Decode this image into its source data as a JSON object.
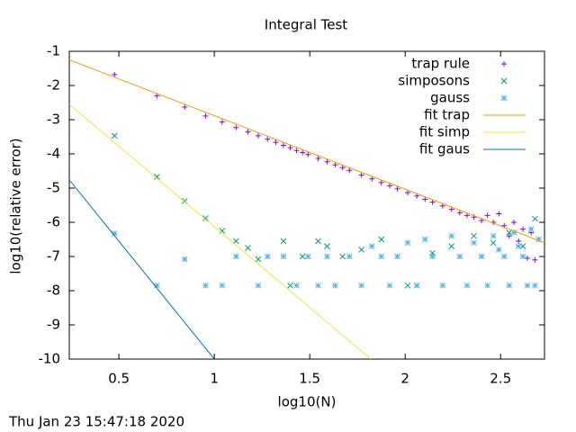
{
  "chart_data": {
    "type": "scatter",
    "title": "Integral Test",
    "x_label": "log10(N)",
    "y_label": "log10(relative error)",
    "timestamp": "Thu Jan 23 15:47:18 2020",
    "xlim": [
      0.24,
      2.73
    ],
    "ylim": [
      -10,
      -1
    ],
    "xticks": [
      0.5,
      1,
      1.5,
      2,
      2.5
    ],
    "yticks": [
      -1,
      -2,
      -3,
      -4,
      -5,
      -6,
      -7,
      -8,
      -9,
      -10
    ],
    "legend": "top-right",
    "series": [
      {
        "name": "trap rule",
        "color": "#9400d3",
        "style": "points",
        "marker": "plus",
        "x": [
          0.477,
          0.699,
          0.845,
          0.954,
          1.041,
          1.114,
          1.176,
          1.23,
          1.279,
          1.322,
          1.362,
          1.398,
          1.431,
          1.462,
          1.491,
          1.544,
          1.591,
          1.633,
          1.672,
          1.708,
          1.771,
          1.826,
          1.875,
          1.919,
          1.959,
          2.013,
          2.061,
          2.104,
          2.143,
          2.196,
          2.243,
          2.286,
          2.324,
          2.36,
          2.4,
          2.431,
          2.462,
          2.491,
          2.519,
          2.545,
          2.57,
          2.594,
          2.617,
          2.64,
          2.66,
          2.68,
          2.7
        ],
        "y": [
          -1.68,
          -2.3,
          -2.63,
          -2.89,
          -3.07,
          -3.23,
          -3.36,
          -3.47,
          -3.57,
          -3.66,
          -3.75,
          -3.82,
          -3.9,
          -3.96,
          -4.02,
          -4.13,
          -4.23,
          -4.32,
          -4.4,
          -4.48,
          -4.62,
          -4.73,
          -4.84,
          -4.93,
          -5.02,
          -5.13,
          -5.23,
          -5.33,
          -5.41,
          -5.52,
          -5.62,
          -5.72,
          -5.8,
          -5.85,
          -5.95,
          -5.8,
          -6.0,
          -5.75,
          -6.1,
          -6.4,
          -6.0,
          -6.55,
          -6.2,
          -7.05,
          -6.3,
          -7.1,
          -6.5
        ]
      },
      {
        "name": "simposons",
        "color": "#009e73",
        "style": "points",
        "marker": "cross",
        "x": [
          0.477,
          0.699,
          0.845,
          0.954,
          1.041,
          1.114,
          1.176,
          1.23,
          1.362,
          1.398,
          1.462,
          1.544,
          1.591,
          1.672,
          1.771,
          1.875,
          2.013,
          2.061,
          2.143,
          2.243,
          2.36,
          2.462,
          2.545,
          2.617,
          2.68
        ],
        "y": [
          -3.47,
          -4.67,
          -5.38,
          -5.88,
          -6.25,
          -6.55,
          -6.75,
          -7.08,
          -6.55,
          -7.85,
          -7.0,
          -6.55,
          -6.7,
          -7.0,
          -6.8,
          -6.5,
          -7.85,
          -7.85,
          -6.9,
          -6.7,
          -6.4,
          -6.6,
          -6.3,
          -6.7,
          -5.9
        ]
      },
      {
        "name": "gauss",
        "color": "#56b4e9",
        "style": "points",
        "marker": "star",
        "x": [
          0.477,
          0.699,
          0.845,
          0.954,
          1.041,
          1.114,
          1.23,
          1.279,
          1.362,
          1.431,
          1.491,
          1.544,
          1.591,
          1.633,
          1.708,
          1.771,
          1.826,
          1.875,
          1.919,
          1.959,
          2.013,
          2.061,
          2.104,
          2.143,
          2.196,
          2.243,
          2.286,
          2.324,
          2.36,
          2.4,
          2.431,
          2.462,
          2.491,
          2.519,
          2.545,
          2.57,
          2.594,
          2.617,
          2.64,
          2.66,
          2.68,
          2.7
        ],
        "y": [
          -6.33,
          -7.85,
          -7.08,
          -7.85,
          -7.85,
          -7.0,
          -7.85,
          -7.0,
          -7.0,
          -7.85,
          -7.0,
          -7.85,
          -7.0,
          -7.85,
          -7.0,
          -7.85,
          -6.7,
          -7.0,
          -7.85,
          -7.0,
          -6.6,
          -7.85,
          -6.5,
          -7.0,
          -7.85,
          -6.4,
          -7.0,
          -7.85,
          -6.6,
          -7.0,
          -7.85,
          -6.4,
          -6.8,
          -7.0,
          -7.85,
          -6.3,
          -6.7,
          -7.0,
          -7.85,
          -6.2,
          -7.85,
          -6.5
        ]
      },
      {
        "name": "fit trap",
        "color": "#e69f00",
        "style": "lines",
        "x": [
          0.24,
          2.73
        ],
        "y": [
          -1.25,
          -6.6
        ]
      },
      {
        "name": "fit simp",
        "color": "#f0e442",
        "style": "lines",
        "x": [
          0.24,
          1.82
        ],
        "y": [
          -2.55,
          -10
        ]
      },
      {
        "name": "fit gaus",
        "color": "#0072b2",
        "style": "lines",
        "x": [
          0.24,
          1.0
        ],
        "y": [
          -4.76,
          -10
        ]
      }
    ]
  }
}
